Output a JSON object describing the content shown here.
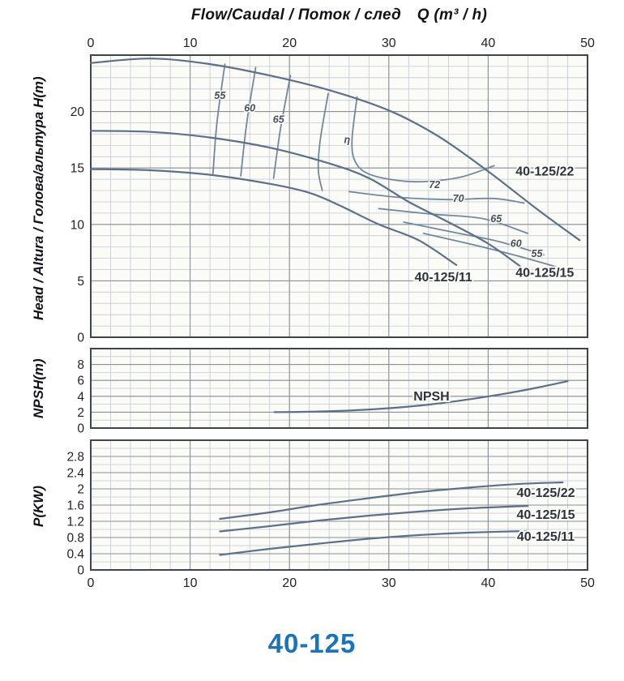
{
  "figure": {
    "top_axis_title": "Flow/Caudal / Поток / след",
    "top_axis_unit": "Q (m³ / h)",
    "bottom_title": "40-125",
    "accent_blue": "#1b74b9"
  },
  "colors": {
    "background": "#fbfbf8",
    "grid_minor": "#c3c9cf",
    "grid_major": "#8a9098",
    "border": "#3f444b",
    "curve": "#5c7088",
    "curve_light": "#72889f",
    "tick_text": "#1e2126",
    "series_label": "#2e323c",
    "contour_label": "#474e5b"
  },
  "chart_data": [
    {
      "id": "head",
      "type": "line",
      "x_axis": {
        "label": "Flow/Caudal / Поток / след Q (m³/h)",
        "range": [
          0,
          50
        ],
        "ticks": [
          "0",
          "10",
          "20",
          "30",
          "40",
          "50"
        ],
        "tick_values": [
          0,
          10,
          20,
          30,
          40,
          50
        ],
        "minor_step": 2,
        "tick_side": "top"
      },
      "y_axis": {
        "label": "Head / Altura / Голова/альтура H(m)",
        "range": [
          0,
          25
        ],
        "ticks": [
          "0",
          "5",
          "10",
          "15",
          "20"
        ],
        "tick_values": [
          0,
          5,
          10,
          15,
          20
        ],
        "minor_step": 1
      },
      "series": [
        {
          "name": "40-125/22",
          "points": [
            [
              0,
              24.3
            ],
            [
              6,
              24.7
            ],
            [
              12,
              24.2
            ],
            [
              18,
              23.2
            ],
            [
              24,
              21.9
            ],
            [
              30,
              20.1
            ],
            [
              35,
              17.8
            ],
            [
              40,
              14.7
            ],
            [
              45,
              11.3
            ],
            [
              49.2,
              8.6
            ]
          ],
          "label_pos": [
            45.7,
            14.7
          ]
        },
        {
          "name": "40-125/15",
          "points": [
            [
              0,
              18.3
            ],
            [
              6,
              18.2
            ],
            [
              12,
              17.7
            ],
            [
              18,
              16.8
            ],
            [
              24,
              15.4
            ],
            [
              28,
              14.1
            ],
            [
              32,
              12.0
            ],
            [
              36,
              10.2
            ],
            [
              40,
              8.3
            ],
            [
              43.2,
              6.3
            ]
          ],
          "label_pos": [
            45.7,
            5.7
          ]
        },
        {
          "name": "40-125/11",
          "points": [
            [
              0,
              14.9
            ],
            [
              6,
              14.8
            ],
            [
              12,
              14.4
            ],
            [
              18,
              13.6
            ],
            [
              22,
              12.8
            ],
            [
              25,
              11.7
            ],
            [
              29,
              10.0
            ],
            [
              33,
              8.6
            ],
            [
              36.8,
              6.4
            ]
          ],
          "label_pos": [
            35.5,
            5.3
          ]
        }
      ],
      "efficiency_contours": [
        {
          "label": "55",
          "points": [
            [
              13.5,
              24.2
            ],
            [
              12.7,
              19.0
            ],
            [
              12.3,
              14.5
            ]
          ],
          "label_pos": [
            13.0,
            21.4
          ]
        },
        {
          "label": "60",
          "points": [
            [
              16.6,
              23.9
            ],
            [
              15.7,
              19.0
            ],
            [
              15.1,
              14.3
            ]
          ],
          "label_pos": [
            16.0,
            20.3
          ]
        },
        {
          "label": "65",
          "points": [
            [
              20.1,
              23.2
            ],
            [
              19.1,
              18.5
            ],
            [
              18.4,
              14.1
            ]
          ],
          "label_pos": [
            18.9,
            19.3
          ]
        },
        {
          "label": "η",
          "points": [
            [
              23.9,
              21.6
            ],
            [
              23.1,
              17.5
            ],
            [
              22.9,
              14.8
            ],
            [
              23.3,
              13.0
            ]
          ],
          "label_pos": [
            25.8,
            17.5
          ]
        },
        {
          "label": "72",
          "points": [
            [
              26.8,
              21.3
            ],
            [
              26.3,
              17.5
            ],
            [
              26.6,
              15.6
            ],
            [
              27.9,
              14.5
            ],
            [
              30.8,
              13.9
            ],
            [
              33.8,
              13.8
            ],
            [
              37.3,
              14.2
            ],
            [
              40.6,
              15.2
            ]
          ],
          "label_pos": [
            34.6,
            13.5
          ]
        },
        {
          "label": "70",
          "points": [
            [
              26.0,
              12.9
            ],
            [
              31.0,
              12.4
            ],
            [
              36.0,
              12.2
            ],
            [
              40.5,
              12.3
            ],
            [
              43.6,
              11.9
            ]
          ],
          "label_pos": [
            37.0,
            12.3
          ]
        },
        {
          "label": "65",
          "points": [
            [
              29.0,
              11.4
            ],
            [
              34.5,
              10.9
            ],
            [
              39.5,
              10.5
            ],
            [
              44.0,
              9.2
            ]
          ],
          "label_pos": [
            40.8,
            10.5
          ]
        },
        {
          "label": "60",
          "points": [
            [
              31.5,
              10.2
            ],
            [
              36.5,
              9.3
            ],
            [
              41.0,
              8.5
            ],
            [
              45.6,
              7.3
            ]
          ],
          "label_pos": [
            42.8,
            8.3
          ]
        },
        {
          "label": "55",
          "points": [
            [
              33.5,
              9.2
            ],
            [
              38.5,
              8.2
            ],
            [
              43.0,
              7.2
            ],
            [
              47.4,
              6.1
            ]
          ],
          "label_pos": [
            44.9,
            7.4
          ]
        }
      ]
    },
    {
      "id": "npsh",
      "type": "line",
      "x_axis": {
        "range": [
          0,
          50
        ],
        "minor_step": 2,
        "tick_values": [
          10,
          20,
          30,
          40
        ]
      },
      "y_axis": {
        "label": "NPSH(m)",
        "range": [
          0,
          10
        ],
        "ticks": [
          "0",
          "2",
          "4",
          "6",
          "8"
        ],
        "tick_values": [
          0,
          2,
          4,
          6,
          8
        ],
        "minor_step": 1
      },
      "series": [
        {
          "name": "NPSH",
          "points": [
            [
              18.5,
              2.0
            ],
            [
              22,
              2.05
            ],
            [
              26,
              2.2
            ],
            [
              30,
              2.5
            ],
            [
              34,
              2.95
            ],
            [
              38,
              3.6
            ],
            [
              42,
              4.4
            ],
            [
              45,
              5.1
            ],
            [
              48,
              5.9
            ]
          ],
          "label_pos": [
            34.3,
            4.0
          ]
        }
      ]
    },
    {
      "id": "power",
      "type": "line",
      "x_axis": {
        "range": [
          0,
          50
        ],
        "ticks": [
          "0",
          "10",
          "20",
          "30",
          "40",
          "50"
        ],
        "tick_values": [
          0,
          10,
          20,
          30,
          40,
          50
        ],
        "minor_step": 2,
        "tick_side": "bottom"
      },
      "y_axis": {
        "label": "P(KW)",
        "range": [
          0,
          3.2
        ],
        "ticks": [
          "0",
          "0.4",
          "0.8",
          "1.2",
          "1.6",
          "2",
          "2.4",
          "2.8"
        ],
        "tick_values": [
          0,
          0.4,
          0.8,
          1.2,
          1.6,
          2,
          2.4,
          2.8
        ],
        "minor_step": 0.2
      },
      "series": [
        {
          "name": "40-125/22",
          "points": [
            [
              13,
              1.26
            ],
            [
              18,
              1.42
            ],
            [
              23,
              1.61
            ],
            [
              28,
              1.77
            ],
            [
              33,
              1.92
            ],
            [
              38,
              2.03
            ],
            [
              43,
              2.12
            ],
            [
              47.5,
              2.16
            ]
          ],
          "label_pos": [
            45.8,
            1.9
          ]
        },
        {
          "name": "40-125/15",
          "points": [
            [
              13,
              0.95
            ],
            [
              18,
              1.08
            ],
            [
              23,
              1.22
            ],
            [
              28,
              1.34
            ],
            [
              33,
              1.44
            ],
            [
              38,
              1.52
            ],
            [
              44,
              1.58
            ]
          ],
          "label_pos": [
            45.8,
            1.36
          ]
        },
        {
          "name": "40-125/11",
          "points": [
            [
              13,
              0.37
            ],
            [
              18,
              0.52
            ],
            [
              23,
              0.65
            ],
            [
              28,
              0.77
            ],
            [
              33,
              0.86
            ],
            [
              38,
              0.92
            ],
            [
              44,
              0.96
            ]
          ],
          "label_pos": [
            45.8,
            0.82
          ]
        }
      ]
    }
  ]
}
